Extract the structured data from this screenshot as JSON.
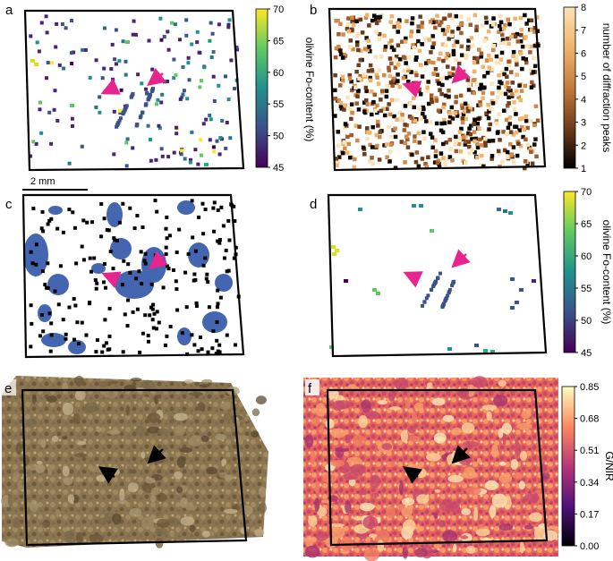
{
  "panels": {
    "a": {
      "label": "a"
    },
    "b": {
      "label": "b"
    },
    "c": {
      "label": "c"
    },
    "d": {
      "label": "d"
    },
    "e": {
      "label": "e"
    },
    "f": {
      "label": "f"
    }
  },
  "scale_bar": {
    "text": "2 mm"
  },
  "colorbars": {
    "a": {
      "label": "olivine Fo-content (%)",
      "ticks": [
        "70",
        "65",
        "60",
        "55",
        "50",
        "45"
      ],
      "colors": [
        "#fde725",
        "#5ec962",
        "#21918c",
        "#3b528b",
        "#440154"
      ]
    },
    "b": {
      "label": "number of diffraction peaks",
      "ticks": [
        "8",
        "7",
        "6",
        "5",
        "4",
        "3",
        "2",
        "1"
      ],
      "colors": [
        "#fbe3b8",
        "#f0b46c",
        "#c47a3a",
        "#6e3d1c",
        "#000000"
      ]
    },
    "d": {
      "label": "olivine Fo-content (%)",
      "ticks": [
        "70",
        "65",
        "60",
        "55",
        "50",
        "45"
      ],
      "colors": [
        "#fde725",
        "#5ec962",
        "#21918c",
        "#3b528b",
        "#440154"
      ]
    },
    "f": {
      "label": "G/NIR",
      "ticks": [
        "0.85",
        "0.68",
        "0.51",
        "0.34",
        "0.17",
        "0.00"
      ],
      "colors": [
        "#fcfdbf",
        "#fc8961",
        "#b73779",
        "#51127c",
        "#000004"
      ]
    }
  },
  "colors": {
    "arrow_magenta": "#e8258e",
    "arrow_black": "#000000",
    "grain_blue": "#4466b0",
    "rock_base": "#8a7550",
    "map_base": "#e8645a"
  }
}
